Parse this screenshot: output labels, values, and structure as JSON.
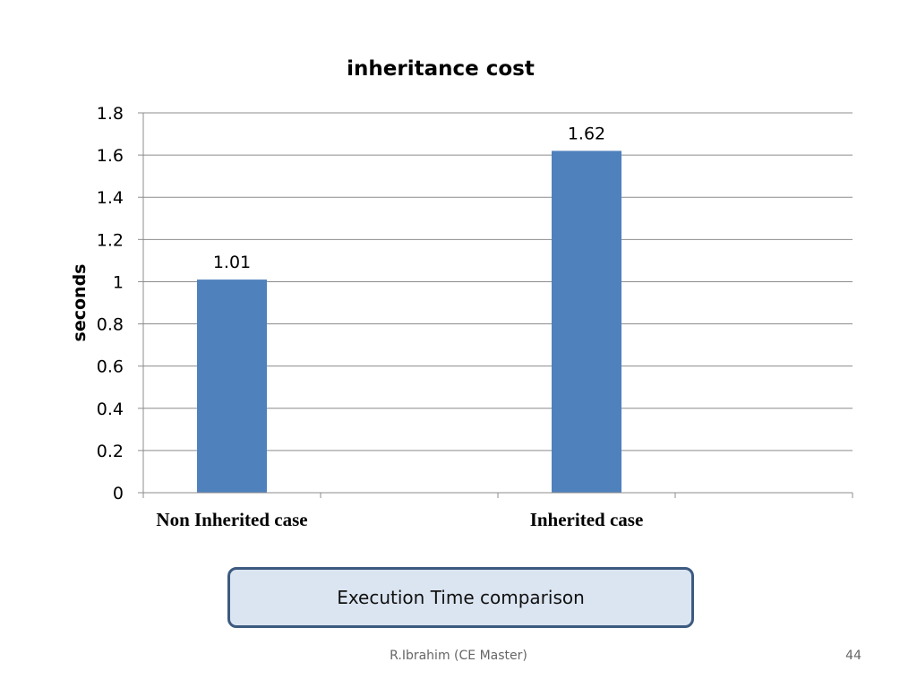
{
  "chart_data": {
    "type": "bar",
    "title": "inheritance cost",
    "ylabel": "seconds",
    "xlabel": "",
    "categories": [
      "Non Inherited case",
      "Inherited case"
    ],
    "values": [
      1.01,
      1.62
    ],
    "data_labels": [
      "1.01",
      "1.62"
    ],
    "ylim": [
      0,
      1.8
    ],
    "yticks": [
      0,
      0.2,
      0.4,
      0.6,
      0.8,
      1,
      1.2,
      1.4,
      1.6,
      1.8
    ],
    "ytick_labels": [
      "0",
      "0.2",
      "0.4",
      "0.6",
      "0.8",
      "1",
      "1.2",
      "1.4",
      "1.6",
      "1.8"
    ],
    "grid": true,
    "legend": "none",
    "bar_color": "#4f81bd"
  },
  "caption": "Execution Time comparison",
  "footer": {
    "author": "R.Ibrahim (CE Master)",
    "page": "44"
  }
}
